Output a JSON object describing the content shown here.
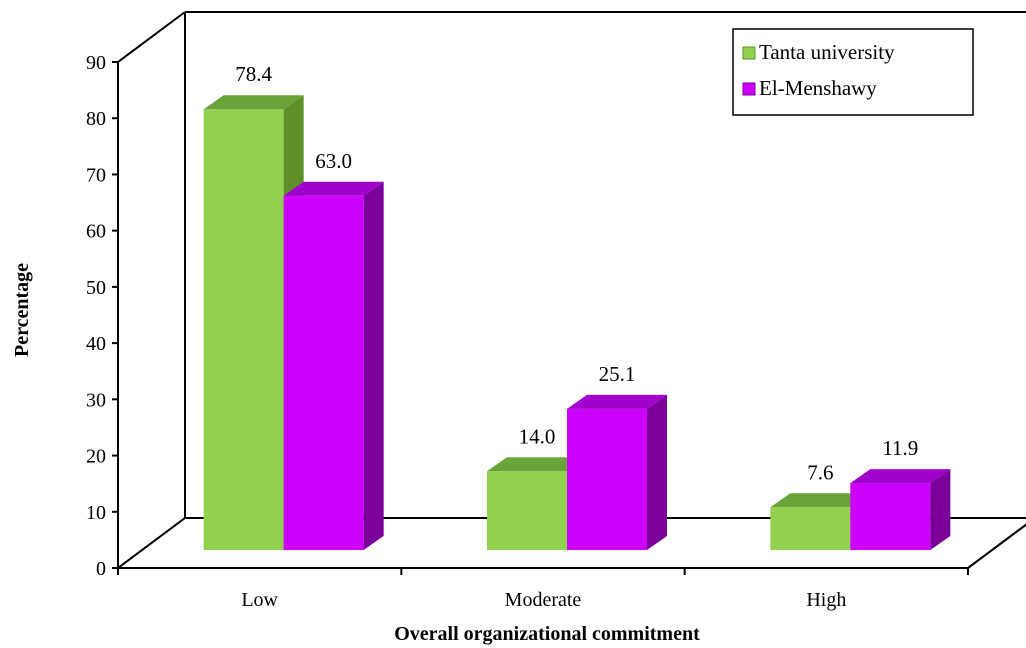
{
  "chart_data": {
    "type": "bar",
    "xlabel": "Overall organizational commitment",
    "ylabel": "Percentage",
    "categories": [
      "Low",
      "Moderate",
      "High"
    ],
    "series": [
      {
        "name": "Tanta university",
        "values": [
          78.4,
          14.0,
          7.6
        ],
        "labels": [
          "78.4",
          "14.0",
          "7.6"
        ],
        "color": "#92d050",
        "side_color": "#5f8f2a",
        "top_color": "#6aa33a"
      },
      {
        "name": "El-Menshawy",
        "values": [
          63.0,
          25.1,
          11.9
        ],
        "labels": [
          "63.0",
          "25.1",
          "11.9"
        ],
        "color": "#cc00ff",
        "side_color": "#7a0099",
        "top_color": "#a000cc"
      }
    ],
    "ylim": [
      0,
      90
    ],
    "yticks": [
      "0",
      "10",
      "20",
      "30",
      "40",
      "50",
      "60",
      "70",
      "80",
      "90"
    ],
    "legend_position": "top-right",
    "three_d": true,
    "grid": false
  }
}
